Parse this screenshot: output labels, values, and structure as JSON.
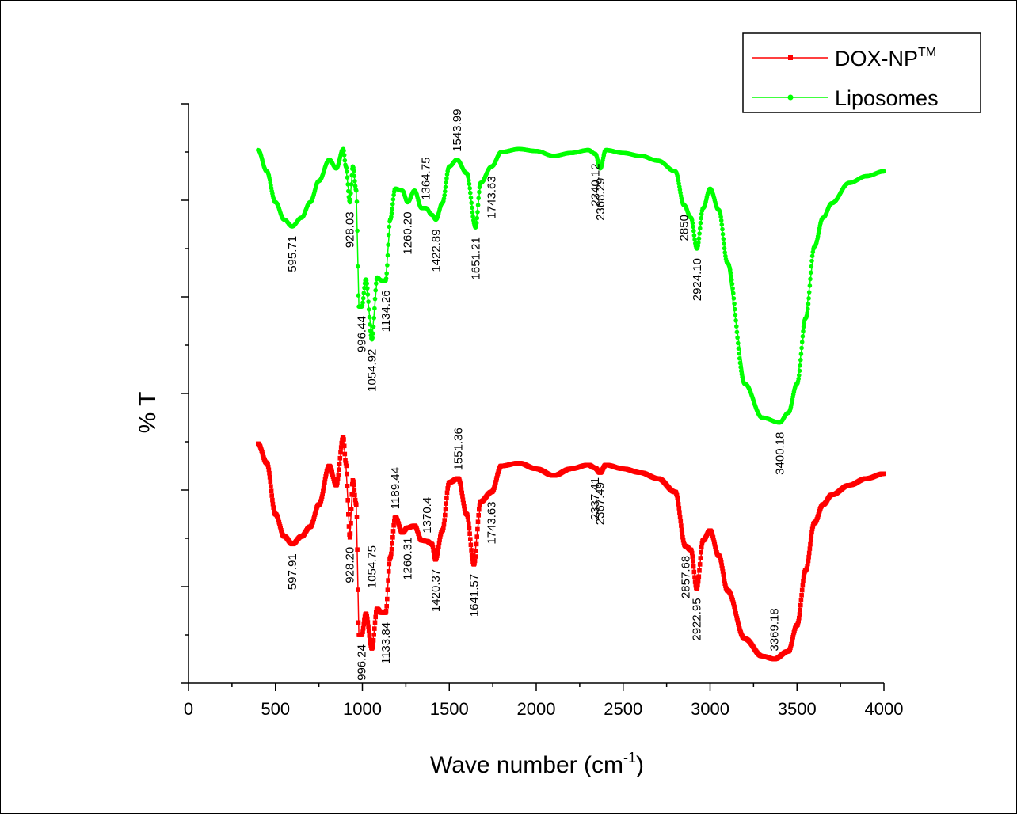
{
  "chart_data": {
    "type": "line",
    "title": "",
    "xlabel": "Wave number (cm",
    "xlabel_sup": "-1",
    "xlabel_close": ")",
    "ylabel": "% T",
    "xlim": [
      0,
      4000
    ],
    "ylim": [
      0,
      6
    ],
    "xticks": [
      "0",
      "500",
      "1000",
      "1500",
      "2000",
      "2500",
      "3000",
      "3500",
      "4000"
    ],
    "grid": false,
    "legend_position": "top-right",
    "series": [
      {
        "key": "dox",
        "name": "DOX-NP",
        "name_sup": "TM",
        "color": "#ff0000",
        "marker": "square",
        "x": [
          400,
          450,
          500,
          550,
          597.91,
          650,
          700,
          750,
          810,
          850,
          890,
          905,
          928.2,
          945,
          965,
          980,
          996.24,
          1020,
          1054.75,
          1085,
          1110,
          1133.84,
          1160,
          1189.44,
          1230,
          1260.31,
          1300,
          1340,
          1370.4,
          1400,
          1420.37,
          1460,
          1500,
          1551.36,
          1600,
          1641.57,
          1680,
          1743.63,
          1800,
          1900,
          2000,
          2100,
          2200,
          2300,
          2337.41,
          2367.49,
          2400,
          2500,
          2600,
          2700,
          2800,
          2857.68,
          2890,
          2922.95,
          2960,
          3000,
          3050,
          3100,
          3200,
          3300,
          3369.18,
          3450,
          3500,
          3550,
          3600,
          3650,
          3700,
          3800,
          3900,
          4000
        ],
        "y": [
          2.48,
          2.28,
          1.75,
          1.52,
          1.44,
          1.52,
          1.62,
          1.85,
          2.25,
          2.05,
          2.55,
          2.28,
          1.51,
          2.1,
          1.85,
          0.5,
          0.5,
          0.72,
          0.36,
          0.77,
          0.73,
          0.73,
          1.3,
          1.72,
          1.56,
          1.61,
          1.63,
          1.48,
          1.47,
          1.44,
          1.28,
          1.58,
          2.08,
          2.12,
          1.75,
          1.23,
          1.88,
          1.98,
          2.25,
          2.28,
          2.22,
          2.15,
          2.22,
          2.26,
          2.23,
          2.18,
          2.26,
          2.22,
          2.18,
          2.12,
          1.98,
          1.42,
          1.38,
          0.98,
          1.48,
          1.58,
          1.32,
          0.96,
          0.46,
          0.28,
          0.25,
          0.33,
          0.6,
          1.17,
          1.66,
          1.85,
          1.95,
          2.05,
          2.12,
          2.17
        ]
      },
      {
        "key": "lipo",
        "name": "Liposomes",
        "name_sup": "",
        "color": "#00ff00",
        "marker": "circle",
        "x": [
          400,
          450,
          500,
          550,
          595.71,
          650,
          700,
          750,
          810,
          850,
          890,
          905,
          928.03,
          945,
          965,
          980,
          996.44,
          1020,
          1054.92,
          1085,
          1110,
          1134.26,
          1160,
          1189,
          1230,
          1260.2,
          1300,
          1340,
          1364.75,
          1400,
          1422.89,
          1460,
          1500,
          1543.99,
          1600,
          1651.21,
          1680,
          1743.63,
          1800,
          1900,
          2000,
          2100,
          2200,
          2300,
          2340.12,
          2368.29,
          2400,
          2500,
          2600,
          2700,
          2800,
          2850,
          2890,
          2924.1,
          2960,
          3000,
          3050,
          3100,
          3200,
          3300,
          3400.18,
          3450,
          3500,
          3550,
          3600,
          3650,
          3700,
          3800,
          3900,
          4000
        ],
        "y": [
          5.52,
          5.3,
          4.98,
          4.8,
          4.73,
          4.82,
          4.98,
          5.2,
          5.42,
          5.33,
          5.53,
          5.35,
          4.98,
          5.35,
          5.1,
          3.9,
          3.9,
          4.18,
          3.56,
          4.2,
          4.17,
          4.17,
          4.8,
          5.12,
          5.1,
          4.98,
          5.1,
          4.92,
          4.92,
          4.85,
          4.8,
          4.97,
          5.35,
          5.42,
          5.28,
          4.72,
          5.18,
          5.35,
          5.5,
          5.53,
          5.51,
          5.46,
          5.49,
          5.52,
          5.48,
          5.33,
          5.52,
          5.49,
          5.46,
          5.41,
          5.3,
          4.95,
          4.82,
          4.5,
          4.92,
          5.12,
          4.9,
          4.35,
          3.1,
          2.75,
          2.7,
          2.8,
          3.1,
          3.78,
          4.52,
          4.82,
          4.97,
          5.18,
          5.25,
          5.3
        ]
      }
    ],
    "annotations": {
      "lipo": [
        {
          "x": 595.71,
          "y": 4.73,
          "text": "595.71"
        },
        {
          "x": 928.03,
          "y": 4.98,
          "text": "928.03"
        },
        {
          "x": 996.44,
          "y": 3.9,
          "text": "996.44"
        },
        {
          "x": 1054.92,
          "y": 3.56,
          "text": "1054.92"
        },
        {
          "x": 1134.26,
          "y": 4.17,
          "text": "1134.26"
        },
        {
          "x": 1260.2,
          "y": 4.98,
          "text": "1260.20"
        },
        {
          "x": 1364.75,
          "y": 4.92,
          "text": "1364.75",
          "above": true
        },
        {
          "x": 1422.89,
          "y": 4.8,
          "text": "1422.89"
        },
        {
          "x": 1543.99,
          "y": 5.42,
          "text": "1543.99",
          "above": true
        },
        {
          "x": 1651.21,
          "y": 4.72,
          "text": "1651.21"
        },
        {
          "x": 1743.63,
          "y": 5.35,
          "text": "1743.63"
        },
        {
          "x": 2340.12,
          "y": 5.48,
          "text": "2340.12"
        },
        {
          "x": 2368.29,
          "y": 5.33,
          "text": "2368.29"
        },
        {
          "x": 2850,
          "y": 4.95,
          "text": "2850"
        },
        {
          "x": 2924.1,
          "y": 4.5,
          "text": "2924.10"
        },
        {
          "x": 3400.18,
          "y": 2.7,
          "text": "3400.18"
        }
      ],
      "dox": [
        {
          "x": 597.91,
          "y": 1.44,
          "text": "597.91"
        },
        {
          "x": 928.2,
          "y": 1.51,
          "text": "928.20"
        },
        {
          "x": 996.24,
          "y": 0.5,
          "text": "996.24"
        },
        {
          "x": 1054.75,
          "y": 0.9,
          "text": "1054.75",
          "above": true
        },
        {
          "x": 1133.84,
          "y": 0.73,
          "text": "1133.84"
        },
        {
          "x": 1189.44,
          "y": 1.72,
          "text": "1189.44",
          "above": true
        },
        {
          "x": 1260.31,
          "y": 1.61,
          "text": "1260.31"
        },
        {
          "x": 1370.4,
          "y": 1.47,
          "text": "1370.4",
          "above": true
        },
        {
          "x": 1420.37,
          "y": 1.28,
          "text": "1420.37"
        },
        {
          "x": 1551.36,
          "y": 2.12,
          "text": "1551.36",
          "above": true
        },
        {
          "x": 1641.57,
          "y": 1.23,
          "text": "1641.57"
        },
        {
          "x": 1743.63,
          "y": 1.98,
          "text": "1743.63"
        },
        {
          "x": 2337.41,
          "y": 2.23,
          "text": "2337.41"
        },
        {
          "x": 2367.49,
          "y": 2.18,
          "text": "2367.49"
        },
        {
          "x": 2857.68,
          "y": 1.42,
          "text": "2857.68"
        },
        {
          "x": 2922.95,
          "y": 0.98,
          "text": "2922.95"
        },
        {
          "x": 3369.18,
          "y": 0.25,
          "text": "3369.18",
          "above": true
        }
      ]
    }
  }
}
